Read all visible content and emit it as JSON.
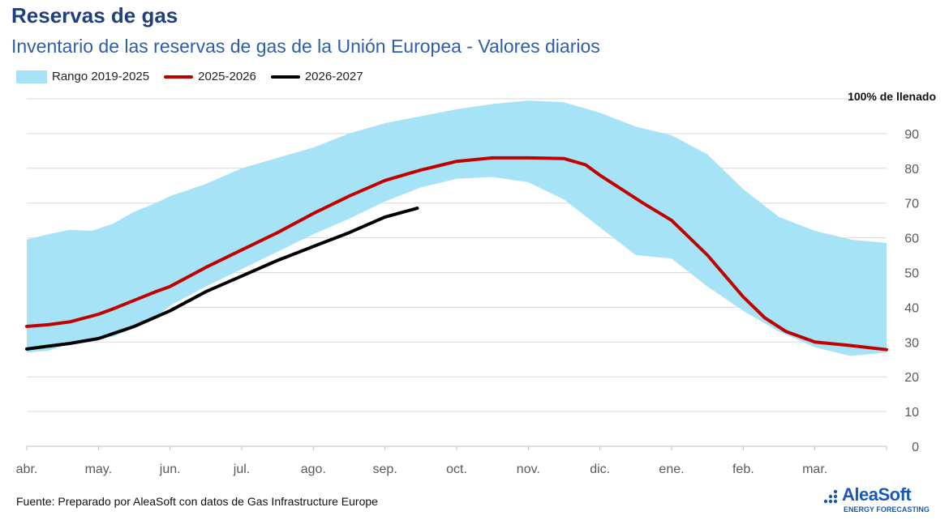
{
  "header": {
    "title": "Reservas de gas",
    "subtitle": "Inventario de las reservas de gas de la Unión Europea - Valores diarios"
  },
  "footer": {
    "source": "Fuente: Preparado por AleaSoft con datos de Gas Infrastructure Europe"
  },
  "logo": {
    "name": "AleaSoft",
    "tagline": "ENERGY FORECASTING"
  },
  "colors": {
    "range": "#a7e3f7",
    "series_2025_2026": "#c00000",
    "series_2026_2027": "#000000",
    "grid": "#d9d9d9",
    "axis_text": "#595959"
  },
  "chart_data": {
    "type": "area",
    "title": "Reservas de gas",
    "subtitle": "Inventario de las reservas de gas de la Unión Europea - Valores diarios",
    "annotation": "100% de llenado",
    "x_axis": {
      "type": "month_index",
      "min": 0,
      "max": 12,
      "tick_labels": [
        "abr.",
        "may.",
        "jun.",
        "jul.",
        "ago.",
        "sep.",
        "oct.",
        "nov.",
        "dic.",
        "ene.",
        "feb.",
        "mar."
      ]
    },
    "y_axis": {
      "position": "right",
      "ylim": [
        0,
        100
      ],
      "ticks": [
        0,
        10,
        20,
        30,
        40,
        50,
        60,
        70,
        80,
        90
      ]
    },
    "grid": true,
    "legend": {
      "placement": "top-left",
      "entries": [
        "Rango 2019-2025",
        "2025-2026",
        "2026-2027"
      ]
    },
    "range_band": {
      "name": "Rango 2019-2025",
      "x": [
        0,
        0.3,
        0.6,
        0.9,
        1.2,
        1.5,
        1.8,
        2.0,
        2.5,
        3.0,
        3.5,
        4.0,
        4.5,
        5.0,
        5.5,
        6.0,
        6.5,
        7.0,
        7.5,
        8.0,
        8.5,
        9.0,
        9.5,
        10.0,
        10.5,
        11.0,
        11.5,
        12.0
      ],
      "upper": [
        59.5,
        61,
        62.3,
        62,
        64,
        67.5,
        70,
        72,
        75.5,
        80,
        83,
        86,
        90,
        93,
        95,
        97,
        98.5,
        99.5,
        99,
        96,
        92,
        89.5,
        84,
        74,
        66,
        62,
        59.5,
        58.5
      ],
      "lower": [
        27,
        27.5,
        29.5,
        30.5,
        31.5,
        34,
        37,
        40.5,
        46,
        51,
        56,
        61,
        65.5,
        70.5,
        74.5,
        77,
        77.5,
        76,
        71,
        63,
        55,
        54,
        46,
        39,
        33,
        28.5,
        26,
        27
      ]
    },
    "series": [
      {
        "name": "2025-2026",
        "x": [
          0,
          0.3,
          0.6,
          1.0,
          1.2,
          1.5,
          1.8,
          2.0,
          2.5,
          3.0,
          3.5,
          4.0,
          4.5,
          5.0,
          5.5,
          5.8,
          6.0,
          6.5,
          7.0,
          7.5,
          7.8,
          8.0,
          8.3,
          8.6,
          9.0,
          9.5,
          10.0,
          10.3,
          10.6,
          11.0,
          11.5,
          12.0
        ],
        "values": [
          34.5,
          35,
          35.8,
          38,
          39.5,
          42,
          44.5,
          46,
          51.5,
          56.5,
          61.5,
          67,
          72,
          76.5,
          79.5,
          81,
          82,
          83,
          83,
          82.8,
          81,
          78,
          74,
          70,
          65,
          55,
          43,
          37,
          33,
          30,
          29,
          27.8
        ]
      },
      {
        "name": "2026-2027",
        "x": [
          0,
          0.3,
          0.6,
          1.0,
          1.5,
          2.0,
          2.5,
          3.0,
          3.5,
          4.0,
          4.5,
          5.0,
          5.45
        ],
        "values": [
          28,
          28.8,
          29.6,
          31,
          34.5,
          39,
          44.5,
          49,
          53.5,
          57.5,
          61.5,
          66,
          68.5
        ]
      }
    ]
  }
}
